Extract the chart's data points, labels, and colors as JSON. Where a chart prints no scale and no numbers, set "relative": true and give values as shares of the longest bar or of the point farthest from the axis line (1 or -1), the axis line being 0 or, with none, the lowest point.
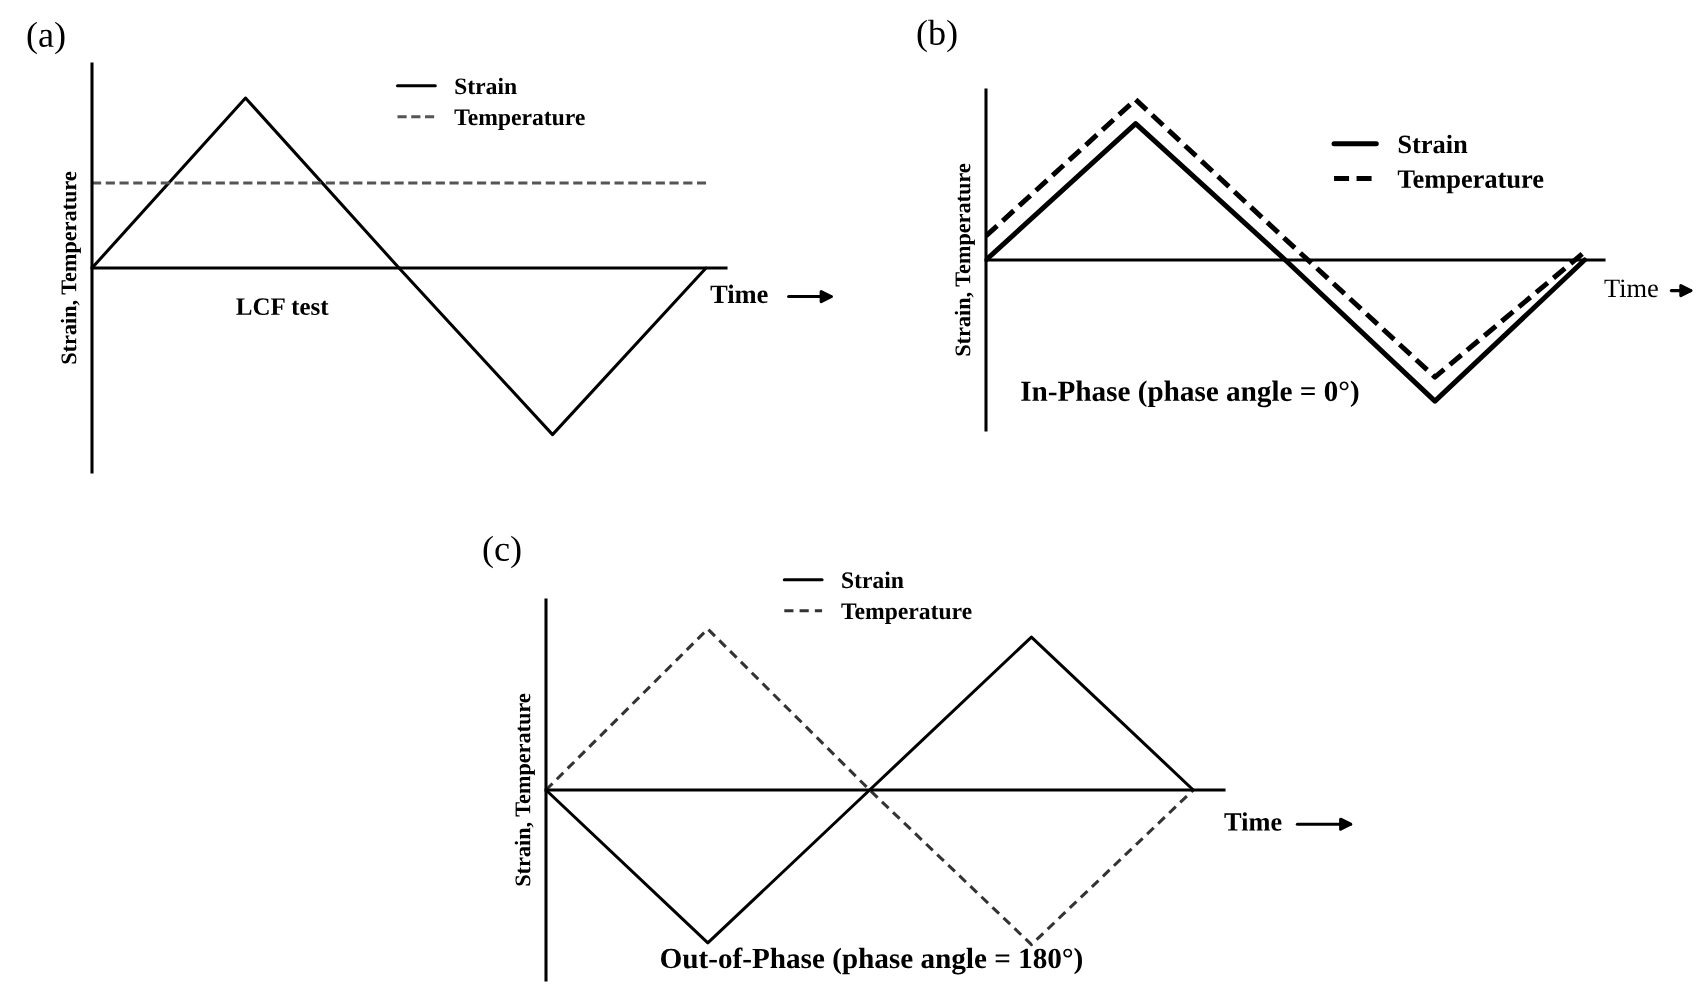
{
  "chart_data": [
    {
      "type": "line",
      "title": "(a)",
      "xlabel": "Time",
      "ylabel": "Strain, Temperature",
      "relative": true,
      "categories": [
        null,
        null,
        null,
        null,
        null
      ],
      "legend": "top",
      "annotations": [
        "LCF test"
      ],
      "series": [
        {
          "name": "Strain",
          "color": "#000000",
          "line_style": "solid",
          "values": [
            0,
            1,
            0,
            -0.98,
            0
          ]
        },
        {
          "name": "Temperature",
          "color": "#555555",
          "line_style": "dashed",
          "values": [
            0.5,
            0.5,
            0.5,
            0.5,
            0.5
          ]
        }
      ]
    },
    {
      "type": "line",
      "title": "(b)",
      "xlabel": "Time",
      "ylabel": "Strain, Temperature",
      "relative": true,
      "categories": [
        null,
        null,
        null,
        null,
        null
      ],
      "legend": "top right",
      "annotations": [
        "In-Phase (phase angle = 0°)"
      ],
      "series": [
        {
          "name": "Strain",
          "color": "#000000",
          "line_style": "solid",
          "values": [
            0,
            0.85,
            0,
            -0.88,
            0
          ]
        },
        {
          "name": "Temperature",
          "color": "#000000",
          "line_style": "dashed",
          "values": [
            0.15,
            1,
            0.13,
            -0.73,
            0.05
          ]
        }
      ]
    },
    {
      "type": "line",
      "title": "(c)",
      "xlabel": "Time",
      "ylabel": "Strain, Temperature",
      "relative": true,
      "categories": [
        null,
        null,
        null,
        null,
        null
      ],
      "legend": "top",
      "annotations": [
        "Out-of-Phase (phase angle = 180°)"
      ],
      "series": [
        {
          "name": "Strain",
          "color": "#000000",
          "line_style": "solid",
          "values": [
            0,
            -0.95,
            0,
            0.95,
            0
          ]
        },
        {
          "name": "Temperature",
          "color": "#333333",
          "line_style": "dashed",
          "values": [
            0,
            1,
            0,
            -0.96,
            0
          ]
        }
      ]
    }
  ]
}
